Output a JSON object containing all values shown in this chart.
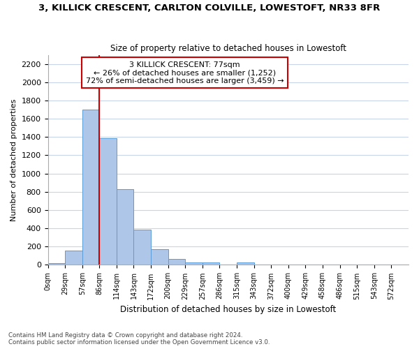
{
  "title": "3, KILLICK CRESCENT, CARLTON COLVILLE, LOWESTOFT, NR33 8FR",
  "subtitle": "Size of property relative to detached houses in Lowestoft",
  "xlabel": "Distribution of detached houses by size in Lowestoft",
  "ylabel": "Number of detached properties",
  "bin_labels": [
    "0sqm",
    "29sqm",
    "57sqm",
    "86sqm",
    "114sqm",
    "143sqm",
    "172sqm",
    "200sqm",
    "229sqm",
    "257sqm",
    "286sqm",
    "315sqm",
    "343sqm",
    "372sqm",
    "400sqm",
    "429sqm",
    "458sqm",
    "486sqm",
    "515sqm",
    "543sqm",
    "572sqm"
  ],
  "bar_heights": [
    20,
    158,
    1700,
    1390,
    830,
    385,
    168,
    65,
    30,
    25,
    0,
    25,
    0,
    0,
    0,
    0,
    0,
    0,
    0,
    0,
    0
  ],
  "bar_color": "#aec6e8",
  "bar_edge_color": "#5b9bd5",
  "vline_color": "#cc0000",
  "annotation_title": "3 KILLICK CRESCENT: 77sqm",
  "annotation_line1": "← 26% of detached houses are smaller (1,252)",
  "annotation_line2": "72% of semi-detached houses are larger (3,459) →",
  "annotation_box_edge": "#cc0000",
  "ylim": [
    0,
    2300
  ],
  "yticks": [
    0,
    200,
    400,
    600,
    800,
    1000,
    1200,
    1400,
    1600,
    1800,
    2000,
    2200
  ],
  "footer_line1": "Contains HM Land Registry data © Crown copyright and database right 2024.",
  "footer_line2": "Contains public sector information licensed under the Open Government Licence v3.0.",
  "background_color": "#ffffff",
  "grid_color": "#c8d4e8"
}
